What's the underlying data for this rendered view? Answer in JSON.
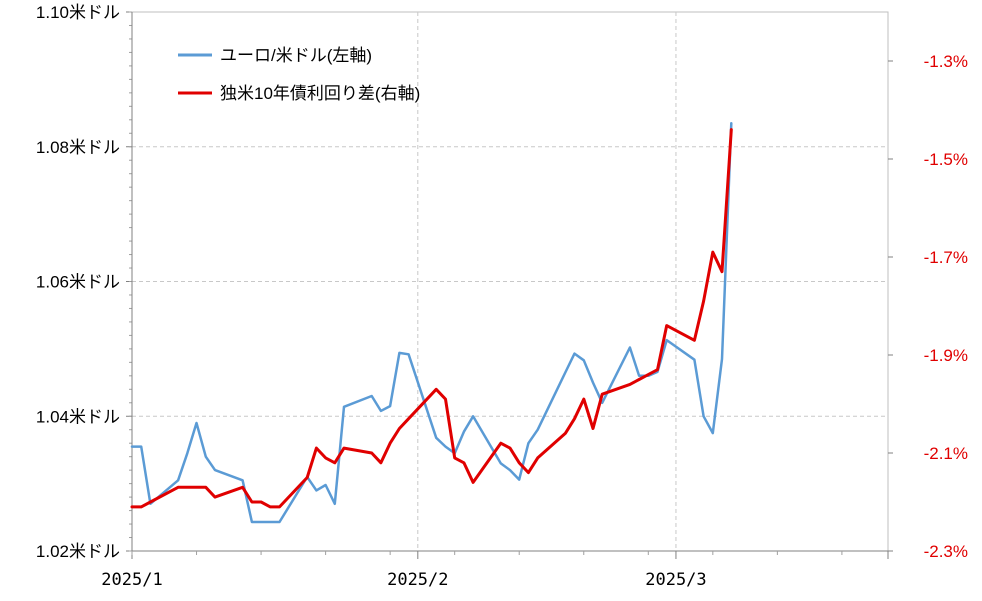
{
  "chart_data": {
    "type": "line",
    "title": "",
    "xlabel": "",
    "ylabel": "",
    "x_ticks": [
      "2025/1",
      "2025/2",
      "2025/3"
    ],
    "x_range": [
      "2025-01-01",
      "2025-03-24"
    ],
    "y_left": {
      "ticks": [
        "1.02米ドル",
        "1.04米ドル",
        "1.06米ドル",
        "1.08米ドル",
        "1.10米ドル"
      ],
      "ylim": [
        1.02,
        1.1
      ]
    },
    "y_right": {
      "ticks": [
        "-1.3%",
        "-1.5%",
        "-1.7%",
        "-1.9%",
        "-2.1%",
        "-2.3%"
      ],
      "ylim": [
        -2.3,
        -1.2
      ],
      "color": "#e00000"
    },
    "grid": true,
    "legend_position": "top-left",
    "series": [
      {
        "name": "ユーロ/米ドル(左軸)",
        "axis": "left",
        "color": "#5b9bd5",
        "x": [
          "2025-01-01",
          "2025-01-02",
          "2025-01-03",
          "2025-01-06",
          "2025-01-07",
          "2025-01-08",
          "2025-01-09",
          "2025-01-10",
          "2025-01-13",
          "2025-01-14",
          "2025-01-15",
          "2025-01-16",
          "2025-01-17",
          "2025-01-20",
          "2025-01-21",
          "2025-01-22",
          "2025-01-23",
          "2025-01-24",
          "2025-01-27",
          "2025-01-28",
          "2025-01-29",
          "2025-01-30",
          "2025-01-31",
          "2025-02-03",
          "2025-02-04",
          "2025-02-05",
          "2025-02-06",
          "2025-02-07",
          "2025-02-10",
          "2025-02-11",
          "2025-02-12",
          "2025-02-13",
          "2025-02-14",
          "2025-02-17",
          "2025-02-18",
          "2025-02-19",
          "2025-02-20",
          "2025-02-21",
          "2025-02-24",
          "2025-02-25",
          "2025-02-26",
          "2025-02-27",
          "2025-02-28",
          "2025-03-03",
          "2025-03-04",
          "2025-03-05",
          "2025-03-06",
          "2025-03-07"
        ],
        "values": [
          1.0355,
          1.0355,
          1.027,
          1.0305,
          1.0345,
          1.039,
          1.034,
          1.032,
          1.0305,
          1.0243,
          1.0243,
          1.0243,
          1.0243,
          1.031,
          1.029,
          1.0298,
          1.027,
          1.0414,
          1.043,
          1.0408,
          1.0415,
          1.0494,
          1.0492,
          1.0368,
          1.0355,
          1.0345,
          1.0377,
          1.04,
          1.033,
          1.032,
          1.0306,
          1.036,
          1.038,
          1.0465,
          1.0493,
          1.0483,
          1.045,
          1.042,
          1.0502,
          1.046,
          1.046,
          1.0466,
          1.0513,
          1.0484,
          1.04,
          1.0375,
          1.0485,
          1.0835
        ]
      },
      {
        "name": "独米10年債利回り差(右軸)",
        "axis": "right",
        "color": "#e00000",
        "x": [
          "2025-01-01",
          "2025-01-02",
          "2025-01-03",
          "2025-01-06",
          "2025-01-07",
          "2025-01-08",
          "2025-01-09",
          "2025-01-10",
          "2025-01-13",
          "2025-01-14",
          "2025-01-15",
          "2025-01-16",
          "2025-01-17",
          "2025-01-20",
          "2025-01-21",
          "2025-01-22",
          "2025-01-23",
          "2025-01-24",
          "2025-01-27",
          "2025-01-28",
          "2025-01-29",
          "2025-01-30",
          "2025-01-31",
          "2025-02-03",
          "2025-02-04",
          "2025-02-05",
          "2025-02-06",
          "2025-02-07",
          "2025-02-10",
          "2025-02-11",
          "2025-02-12",
          "2025-02-13",
          "2025-02-14",
          "2025-02-17",
          "2025-02-18",
          "2025-02-19",
          "2025-02-20",
          "2025-02-21",
          "2025-02-24",
          "2025-02-25",
          "2025-02-26",
          "2025-02-27",
          "2025-02-28",
          "2025-03-03",
          "2025-03-04",
          "2025-03-05",
          "2025-03-06",
          "2025-03-07"
        ],
        "values": [
          -2.21,
          -2.21,
          -2.2,
          -2.17,
          -2.17,
          -2.17,
          -2.17,
          -2.19,
          -2.17,
          -2.2,
          -2.2,
          -2.21,
          -2.21,
          -2.15,
          -2.09,
          -2.11,
          -2.12,
          -2.09,
          -2.1,
          -2.12,
          -2.08,
          -2.05,
          -2.03,
          -1.97,
          -1.99,
          -2.11,
          -2.12,
          -2.16,
          -2.08,
          -2.09,
          -2.12,
          -2.14,
          -2.11,
          -2.06,
          -2.03,
          -1.99,
          -2.05,
          -1.98,
          -1.96,
          -1.95,
          -1.94,
          -1.93,
          -1.84,
          -1.87,
          -1.79,
          -1.69,
          -1.73,
          -1.44
        ]
      }
    ]
  }
}
